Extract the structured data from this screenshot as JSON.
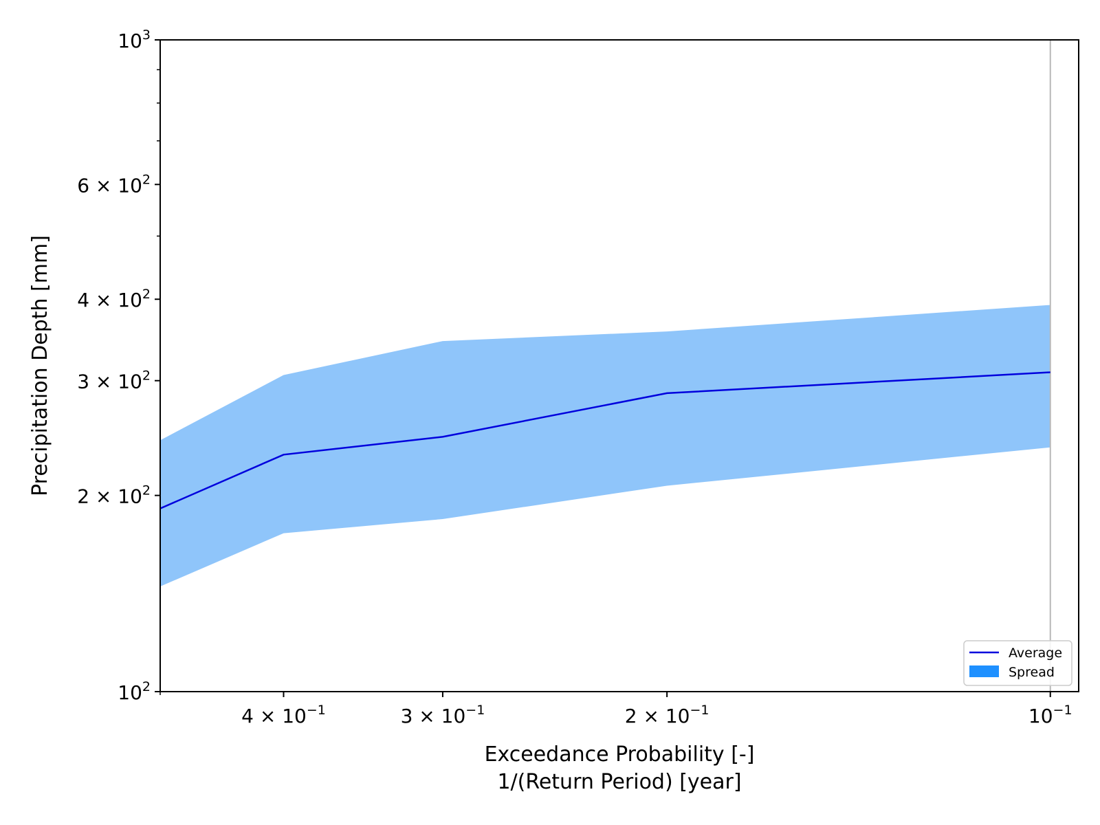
{
  "chart_data": {
    "type": "area",
    "xlabel_line1": "Exceedance Probability [-]",
    "xlabel_line2": "1/(Return Period) [year]",
    "ylabel": "Precipitation Depth [mm]",
    "xscale": "log",
    "yscale": "log",
    "x_inverted": true,
    "xlim": [
      0.5,
      0.095
    ],
    "ylim": [
      100,
      1000
    ],
    "x": [
      0.5,
      0.4,
      0.3,
      0.2,
      0.1
    ],
    "series": [
      {
        "name": "Average",
        "kind": "line",
        "color": "#0000dd",
        "values": [
          191,
          231,
          246,
          287,
          309
        ]
      },
      {
        "name": "Spread",
        "kind": "band",
        "color": "#8fc5fa",
        "lower": [
          145,
          175,
          184,
          207,
          237
        ],
        "upper": [
          243,
          306,
          345,
          357,
          392
        ]
      }
    ],
    "xticks": [
      {
        "value": 0.4,
        "mant": "4 × 10",
        "exp": "−1"
      },
      {
        "value": 0.3,
        "mant": "3 × 10",
        "exp": "−1"
      },
      {
        "value": 0.2,
        "mant": "2 × 10",
        "exp": "−1"
      },
      {
        "value": 0.1,
        "mant": "10",
        "exp": "−1"
      }
    ],
    "yticks": [
      {
        "value": 100,
        "mant": "10",
        "exp": "2"
      },
      {
        "value": 200,
        "mant": "2 × 10",
        "exp": "2"
      },
      {
        "value": 300,
        "mant": "3 × 10",
        "exp": "2"
      },
      {
        "value": 400,
        "mant": "4 × 10",
        "exp": "2"
      },
      {
        "value": 600,
        "mant": "6 × 10",
        "exp": "2"
      },
      {
        "value": 1000,
        "mant": "10",
        "exp": "3"
      }
    ],
    "vline": {
      "x": 0.1,
      "color": "#b8b8b8"
    },
    "legend": {
      "placement": "bottom-right",
      "entries": [
        "Average",
        "Spread"
      ],
      "spread_patch_color": "#1e90ff"
    }
  }
}
